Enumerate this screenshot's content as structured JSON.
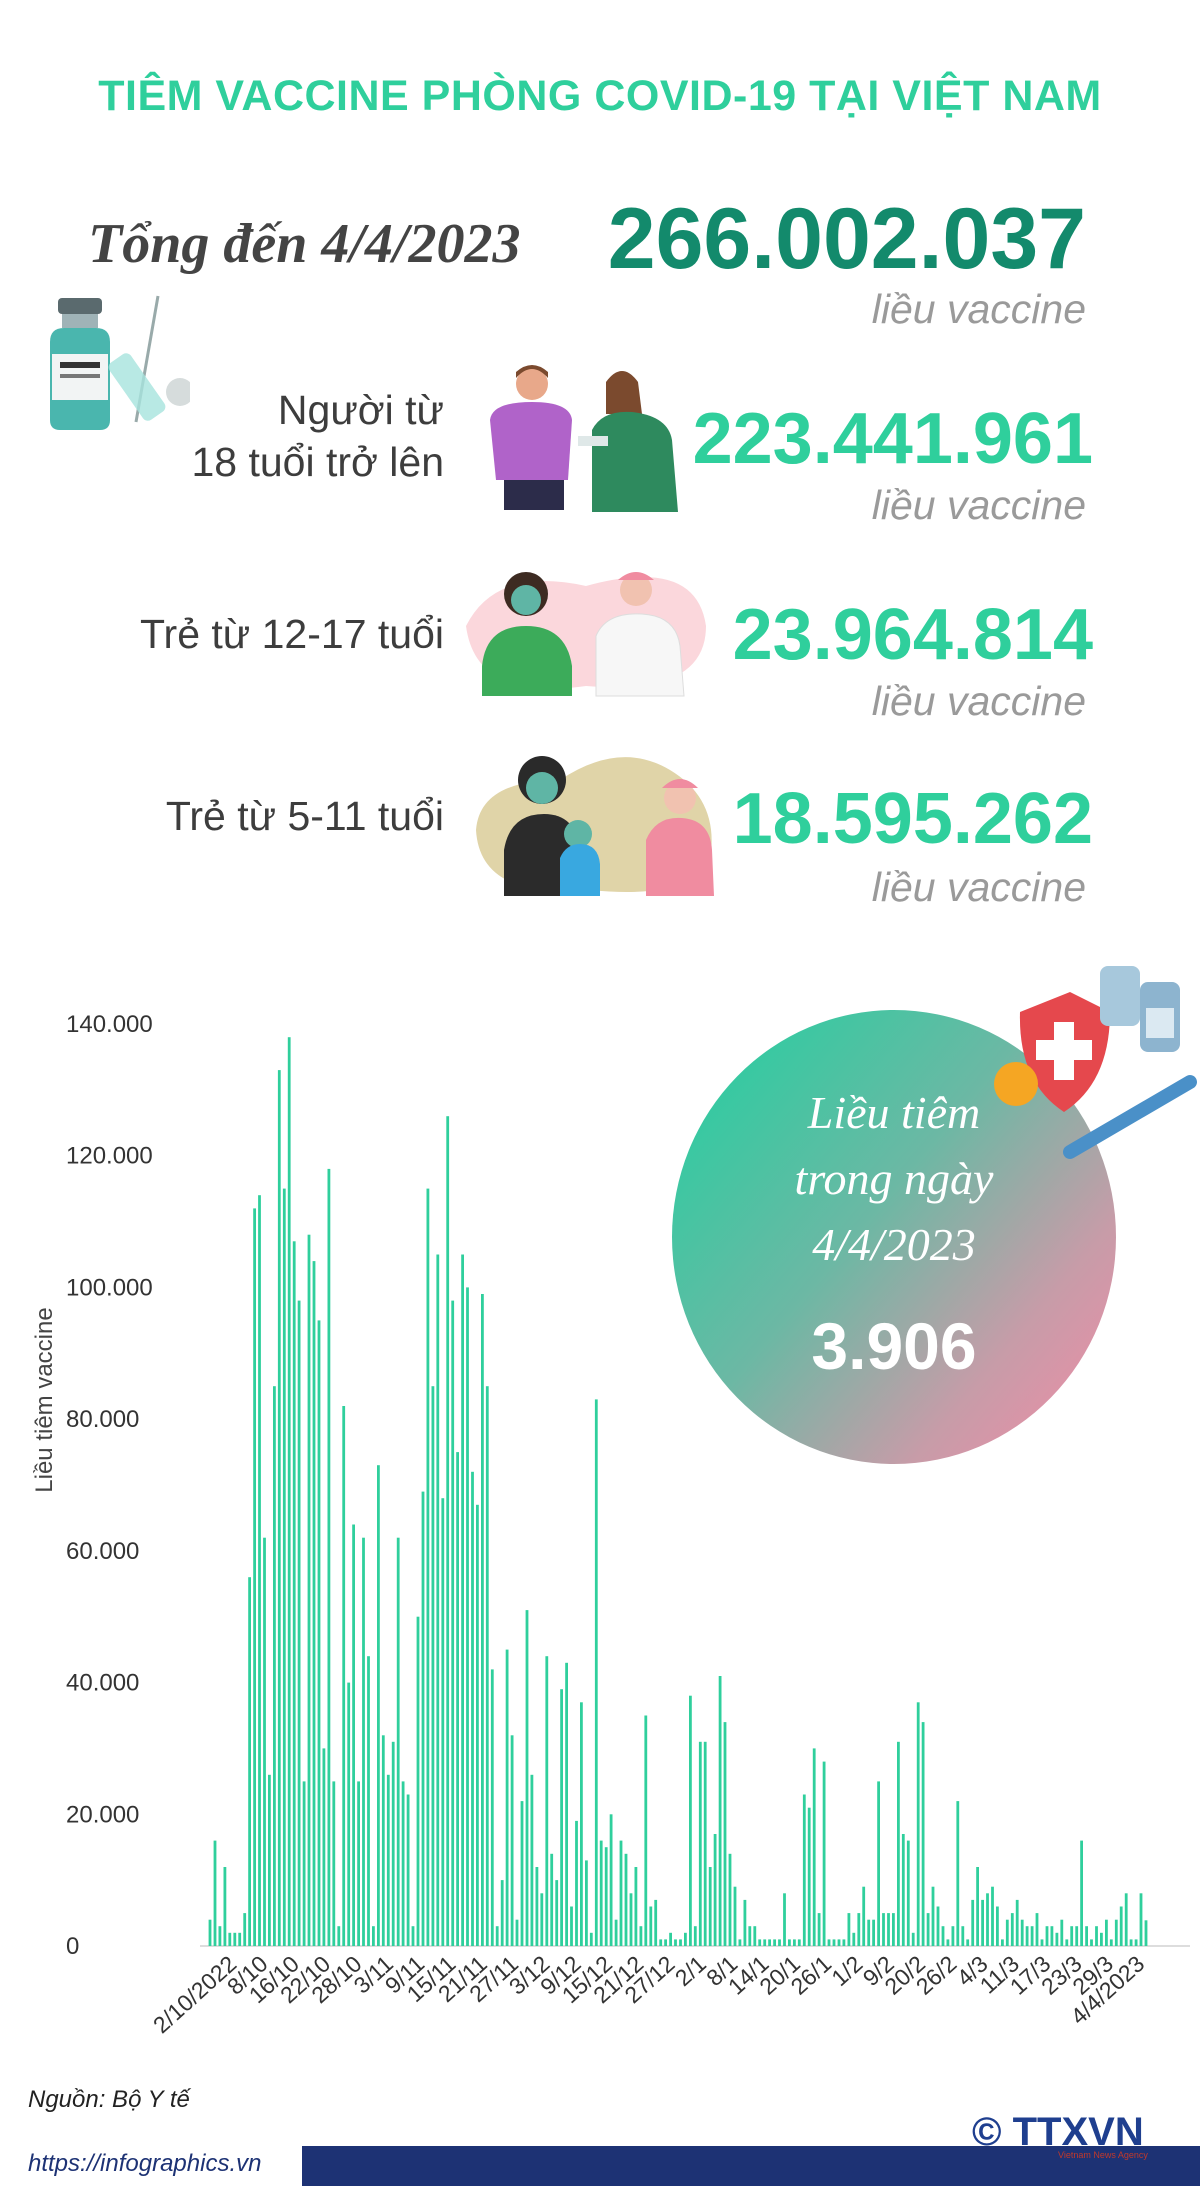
{
  "header": {
    "title": "TIÊM VACCINE PHÒNG COVID-19 TẠI VIỆT NAM",
    "total_label": "Tổng đến 4/4/2023",
    "total_value": "266.002.037",
    "unit": "liều vaccine"
  },
  "categories": [
    {
      "label_line1": "Người từ",
      "label_line2": "18 tuổi trở lên",
      "value": "223.441.961",
      "unit": "liều vaccine"
    },
    {
      "label_line1": "Trẻ từ 12-17 tuổi",
      "label_line2": "",
      "value": "23.964.814",
      "unit": "liều vaccine"
    },
    {
      "label_line1": "Trẻ từ 5-11 tuổi",
      "label_line2": "",
      "value": "18.595.262",
      "unit": "liều vaccine"
    }
  ],
  "bubble": {
    "line1": "Liều tiêm",
    "line2": "trong ngày",
    "line3": "4/4/2023",
    "value": "3.906"
  },
  "footer": {
    "source": "Nguồn: Bộ Y tế",
    "url": "https://infographics.vn",
    "logo": "© TTXVN",
    "logo_sub": "Vietnam News Agency"
  },
  "colors": {
    "accent": "#2fcf9c",
    "dark_accent": "#138a6c",
    "bar": "#2fcf9c",
    "footer": "#1d3274"
  },
  "chart_data": {
    "type": "bar",
    "ylabel": "Liều tiêm vaccine",
    "ylim": [
      0,
      140000
    ],
    "yticks": [
      0,
      20000,
      40000,
      60000,
      80000,
      100000,
      120000,
      140000
    ],
    "ytick_labels": [
      "0",
      "20.000",
      "40.000",
      "60.000",
      "80.000",
      "100.000",
      "120.000",
      "140.000"
    ],
    "xtick_labels": [
      "2/10/2022",
      "8/10",
      "16/10",
      "22/10",
      "28/10",
      "3/11",
      "9/11",
      "15/11",
      "21/11",
      "27/11",
      "3/12",
      "9/12",
      "15/12",
      "21/12",
      "27/12",
      "2/1",
      "8/1",
      "14/1",
      "20/1",
      "26/1",
      "1/2",
      "9/2",
      "20/2",
      "26/2",
      "4/3",
      "11/3",
      "17/3",
      "23/3",
      "29/3",
      "4/4/2023"
    ],
    "values": [
      4000,
      16000,
      3000,
      12000,
      2000,
      2000,
      2000,
      5000,
      56000,
      112000,
      114000,
      62000,
      26000,
      85000,
      133000,
      115000,
      138000,
      107000,
      98000,
      25000,
      108000,
      104000,
      95000,
      30000,
      118000,
      25000,
      3000,
      82000,
      40000,
      64000,
      25000,
      62000,
      44000,
      3000,
      73000,
      32000,
      26000,
      31000,
      62000,
      25000,
      23000,
      3000,
      50000,
      69000,
      115000,
      85000,
      105000,
      68000,
      126000,
      98000,
      75000,
      105000,
      100000,
      72000,
      67000,
      99000,
      85000,
      42000,
      3000,
      10000,
      45000,
      32000,
      4000,
      22000,
      51000,
      26000,
      12000,
      8000,
      44000,
      14000,
      10000,
      39000,
      43000,
      6000,
      19000,
      37000,
      13000,
      2000,
      83000,
      16000,
      15000,
      20000,
      4000,
      16000,
      14000,
      8000,
      12000,
      3000,
      35000,
      6000,
      7000,
      1000,
      1000,
      2000,
      1000,
      1000,
      2000,
      38000,
      3000,
      31000,
      31000,
      12000,
      17000,
      41000,
      34000,
      14000,
      9000,
      1000,
      7000,
      3000,
      3000,
      1000,
      1000,
      1000,
      1000,
      1000,
      8000,
      1000,
      1000,
      1000,
      23000,
      21000,
      30000,
      5000,
      28000,
      1000,
      1000,
      1000,
      1000,
      5000,
      2000,
      5000,
      9000,
      4000,
      4000,
      25000,
      5000,
      5000,
      5000,
      31000,
      17000,
      16000,
      2000,
      37000,
      34000,
      5000,
      9000,
      6000,
      3000,
      1000,
      3000,
      22000,
      3000,
      1000,
      7000,
      12000,
      7000,
      8000,
      9000,
      6000,
      1000,
      4000,
      5000,
      7000,
      4000,
      3000,
      3000,
      5000,
      1000,
      3000,
      3000,
      2000,
      4000,
      1000,
      3000,
      3000,
      16000,
      3000,
      1000,
      3000,
      2000,
      4000,
      1000,
      4000,
      6000,
      8000,
      1000,
      1000,
      8000,
      3906
    ]
  }
}
